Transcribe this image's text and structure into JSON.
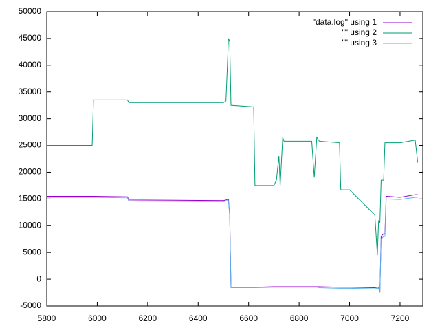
{
  "chart_data": {
    "type": "line",
    "x": [
      5800,
      5980,
      5985,
      6120,
      6125,
      6500,
      6510,
      6515,
      6520,
      6525,
      6530,
      6620,
      6625,
      6700,
      6710,
      6720,
      6725,
      6735,
      6740,
      6850,
      6860,
      6870,
      6880,
      6960,
      6965,
      7000,
      7100,
      7110,
      7115,
      7120,
      7125,
      7135,
      7140,
      7145,
      7200,
      7260,
      7270
    ],
    "series": [
      {
        "name": "\"data.log\" using 1",
        "color": "#9400d3",
        "values": [
          15500,
          15500,
          15500,
          15400,
          14800,
          14700,
          14800,
          14900,
          14900,
          12000,
          -1500,
          -1500,
          -1500,
          -1400,
          -1400,
          -1400,
          -1400,
          -1400,
          -1400,
          -1400,
          -1400,
          -1400,
          -1400,
          -1500,
          -1500,
          -1500,
          -1600,
          -1500,
          -1500,
          -2300,
          8000,
          8500,
          8500,
          15500,
          15300,
          15800,
          15800
        ]
      },
      {
        "name": "\"\" using 2",
        "color": "#009e73",
        "values": [
          25000,
          25000,
          33500,
          33500,
          33000,
          33000,
          33300,
          39000,
          45000,
          44500,
          32500,
          32200,
          17500,
          17500,
          18500,
          23000,
          17500,
          26500,
          25800,
          25800,
          19000,
          26500,
          25800,
          25500,
          16700,
          16700,
          12000,
          4500,
          11000,
          10500,
          18500,
          18500,
          25500,
          25500,
          25500,
          26000,
          21800
        ]
      },
      {
        "name": "\"\" using 3",
        "color": "#56b4e9",
        "values": [
          15300,
          15300,
          15300,
          15200,
          14600,
          14500,
          14600,
          14700,
          14700,
          11800,
          -1600,
          -1600,
          -1600,
          -1500,
          -1500,
          -1500,
          -1500,
          -1500,
          -1500,
          -1500,
          -1500,
          -1500,
          -1600,
          -1700,
          -1700,
          -1700,
          -1800,
          -1700,
          -1700,
          -2500,
          7500,
          8000,
          8000,
          15000,
          14900,
          15300,
          15300
        ]
      }
    ],
    "xlim": [
      5800,
      7290
    ],
    "xticks": [
      5800,
      6000,
      6200,
      6400,
      6600,
      6800,
      7000,
      7200
    ],
    "ylim": [
      -5000,
      50000
    ],
    "yticks": [
      -5000,
      0,
      5000,
      10000,
      15000,
      20000,
      25000,
      30000,
      35000,
      40000,
      45000,
      50000
    ],
    "legend": "top-right"
  }
}
